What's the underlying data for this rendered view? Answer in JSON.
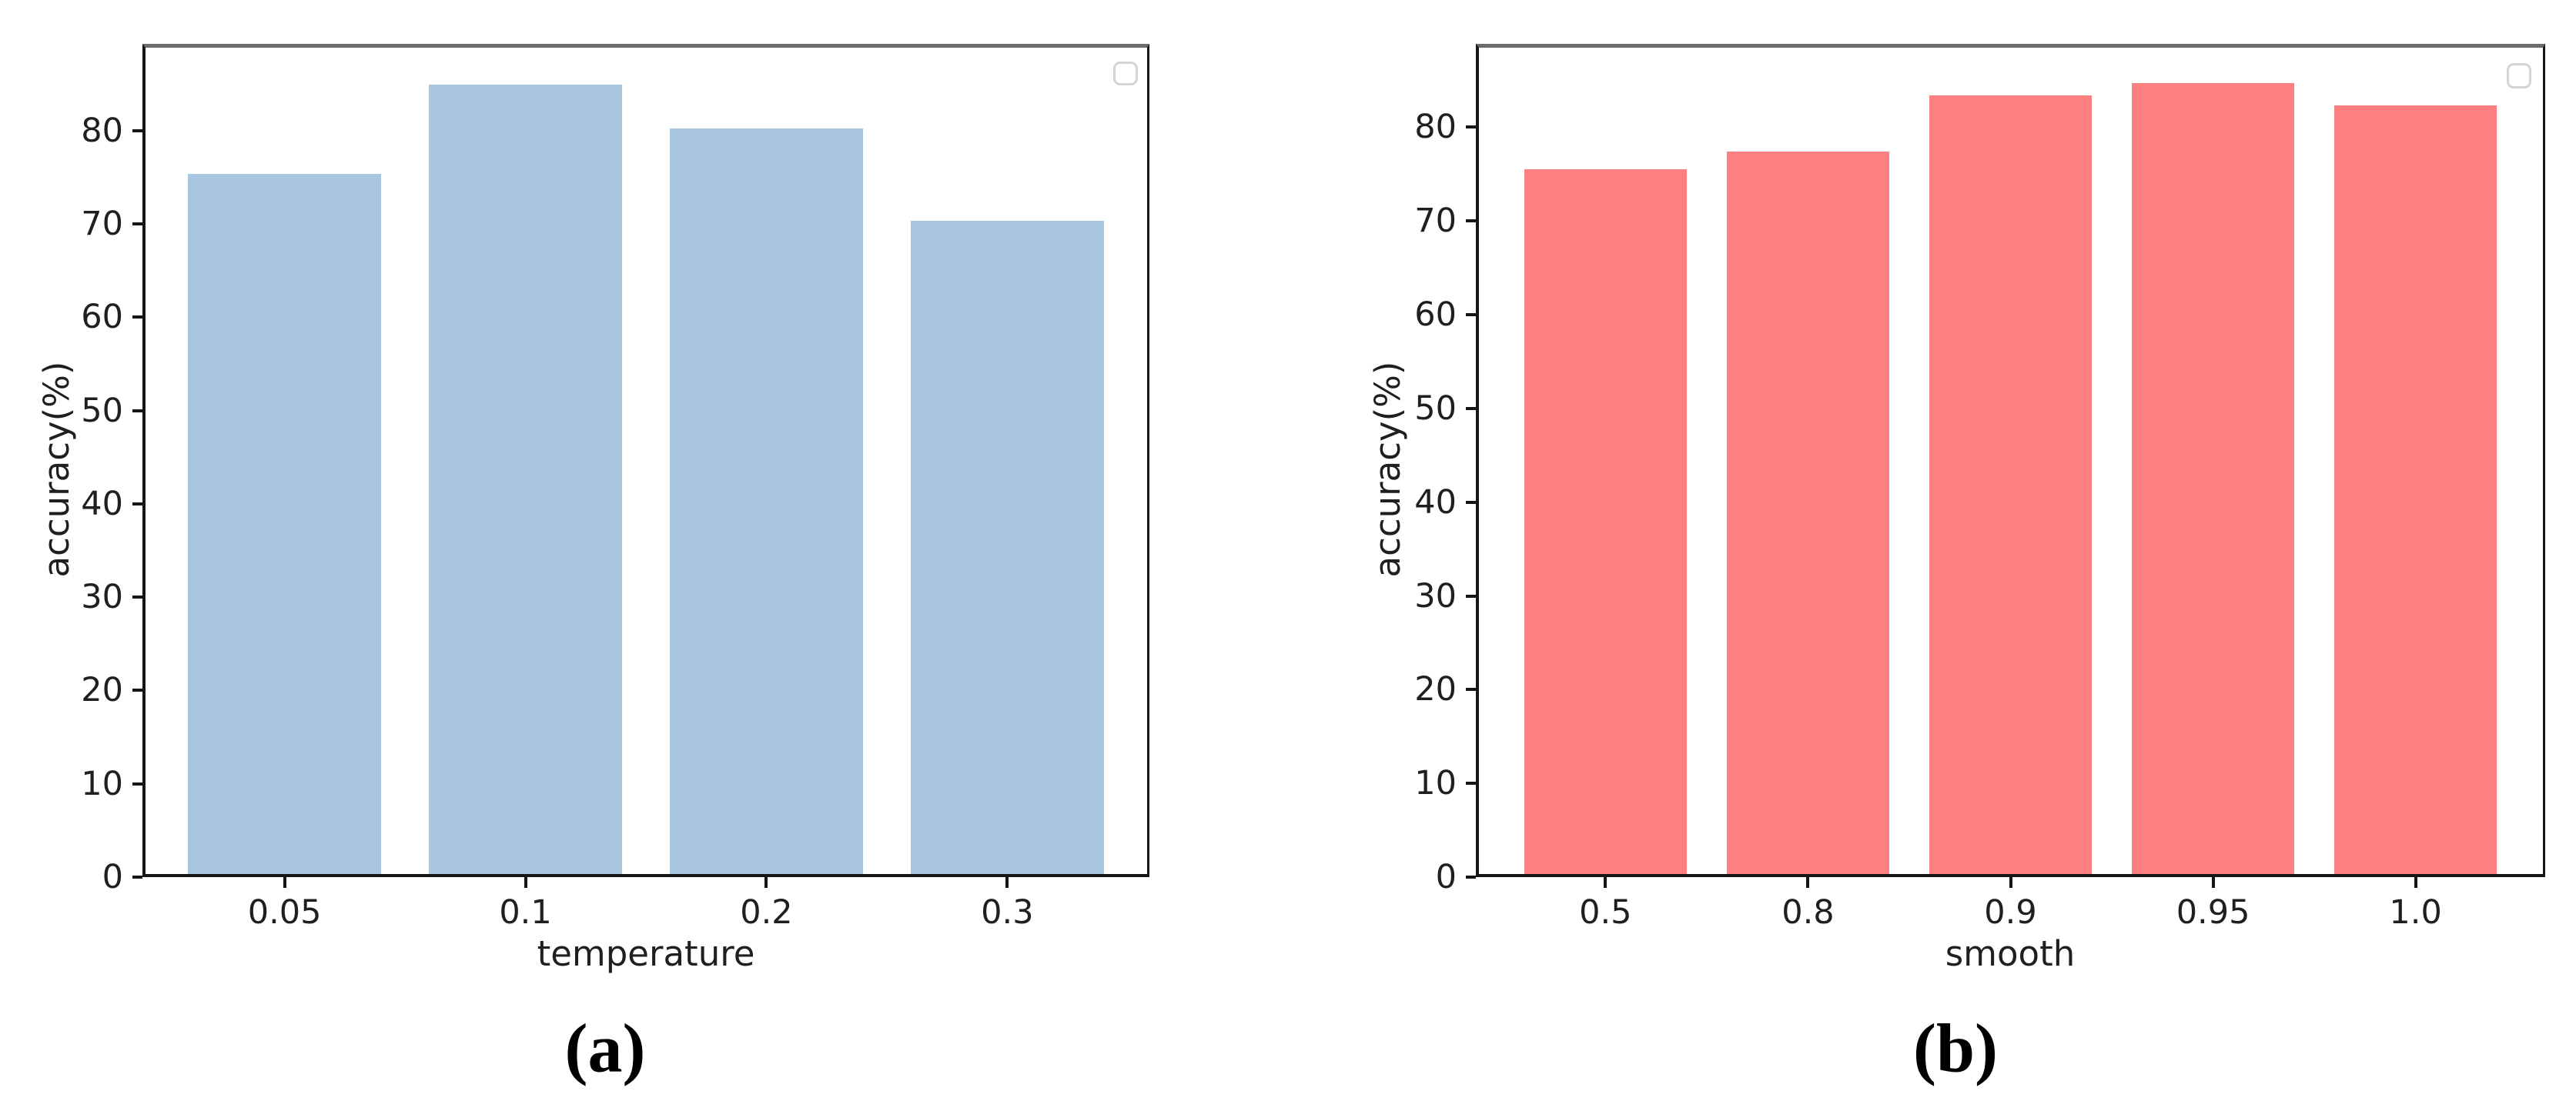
{
  "figure": {
    "background_color": "#ffffff",
    "panels": [
      {
        "caption": "(a)",
        "legend": {
          "state": "empty-box",
          "position": "top-right"
        }
      },
      {
        "caption": "(b)",
        "legend": {
          "state": "empty-box",
          "position": "top-right"
        }
      }
    ]
  },
  "chart_data": [
    {
      "type": "bar",
      "title": "",
      "categories": [
        "0.05",
        "0.1",
        "0.2",
        "0.3"
      ],
      "values": [
        75.4,
        84.9,
        80.2,
        70.3
      ],
      "xlabel": "temperature",
      "ylabel": "accuracy(%)",
      "ylim": [
        0,
        89.3
      ],
      "yticks": [
        0,
        10,
        20,
        30,
        40,
        50,
        60,
        70,
        80
      ],
      "grid": false,
      "legend_entries": [],
      "bar_color": "#a9c6e0",
      "caption": "(a)"
    },
    {
      "type": "bar",
      "title": "",
      "categories": [
        "0.5",
        "0.8",
        "0.9",
        "0.95",
        "1.0"
      ],
      "values": [
        75.5,
        77.4,
        83.4,
        84.7,
        82.3
      ],
      "xlabel": "smooth",
      "ylabel": "accuracy(%)",
      "ylim": [
        0,
        88.9
      ],
      "yticks": [
        0,
        10,
        20,
        30,
        40,
        50,
        60,
        70,
        80
      ],
      "grid": false,
      "legend_entries": [],
      "bar_color": "#fc8080",
      "caption": "(b)"
    }
  ]
}
